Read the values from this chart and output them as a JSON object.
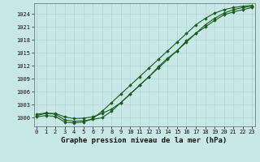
{
  "title": "Graphe pression niveau de la mer (hPa)",
  "background_color": "#c8e8e8",
  "grid_color": "#b0d4d4",
  "line_color": "#1a5c1a",
  "x_values": [
    0,
    1,
    2,
    3,
    4,
    5,
    6,
    7,
    8,
    9,
    10,
    11,
    12,
    13,
    14,
    15,
    16,
    17,
    18,
    19,
    20,
    21,
    22,
    23
  ],
  "line1": [
    1000.5,
    1001.0,
    1001.0,
    1000.2,
    999.8,
    999.9,
    1000.2,
    1001.0,
    1002.0,
    1003.5,
    1005.5,
    1007.5,
    1009.5,
    1011.5,
    1013.5,
    1015.5,
    1017.5,
    1019.5,
    1021.0,
    1022.5,
    1023.8,
    1024.5,
    1025.0,
    1025.5
  ],
  "line2": [
    1000.8,
    1001.1,
    1000.8,
    999.5,
    999.2,
    999.3,
    999.6,
    1000.0,
    1001.5,
    1003.5,
    1005.5,
    1007.5,
    1009.5,
    1011.8,
    1013.8,
    1015.5,
    1017.8,
    1019.5,
    1021.5,
    1023.0,
    1024.2,
    1025.0,
    1025.5,
    1025.8
  ],
  "line3": [
    1000.2,
    1000.5,
    1000.3,
    999.0,
    998.8,
    999.0,
    999.8,
    1001.5,
    1003.5,
    1005.5,
    1007.5,
    1009.5,
    1011.5,
    1013.5,
    1015.5,
    1017.5,
    1019.5,
    1021.5,
    1023.0,
    1024.2,
    1025.0,
    1025.5,
    1025.8,
    1026.0
  ],
  "xlim": [
    -0.3,
    23.3
  ],
  "ylim": [
    998.0,
    1026.5
  ],
  "yticks": [
    1000,
    1003,
    1006,
    1009,
    1012,
    1015,
    1018,
    1021,
    1024
  ],
  "xticks": [
    0,
    1,
    2,
    3,
    4,
    5,
    6,
    7,
    8,
    9,
    10,
    11,
    12,
    13,
    14,
    15,
    16,
    17,
    18,
    19,
    20,
    21,
    22,
    23
  ],
  "tick_fontsize": 5.0,
  "title_fontsize": 6.5,
  "marker": "D",
  "marker_size": 1.8,
  "linewidth": 0.8
}
